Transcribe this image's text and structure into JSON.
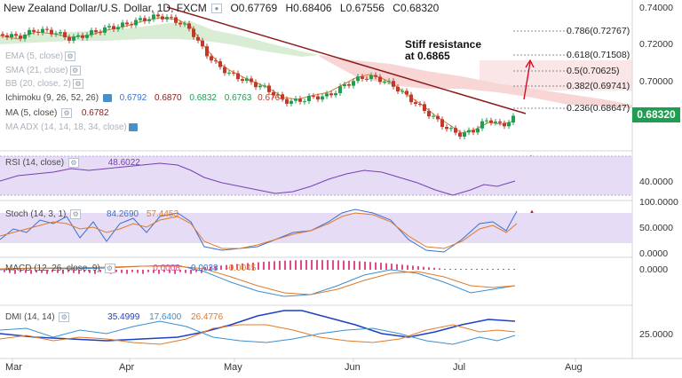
{
  "header": {
    "symbol": "New Zealand Dollar/U.S. Dollar, 1D, FXCM",
    "open": "O0.67769",
    "high": "H0.68406",
    "low": "L0.67556",
    "close": "C0.68320"
  },
  "indicators": {
    "ema1": "EMA (5, close)",
    "sma": "SMA (21, close)",
    "bb": "BB (20, close, 2)",
    "ichimoku": {
      "label": "Ichimoku (9, 26, 52, 26)",
      "v1": "0.6792",
      "v2": "0.6870",
      "v3": "0.6832",
      "v4": "0.6763",
      "v5": "0.6764"
    },
    "ma": {
      "label": "MA (5, close)",
      "v1": "0.6782"
    },
    "maadx": "MA ADX (14, 14, 18, 34, close)",
    "rsi": {
      "label": "RSI (14, close)",
      "v1": "48.6022"
    },
    "stoch": {
      "label": "Stoch (14, 3, 1)",
      "v1": "84.2690",
      "v2": "57.4453"
    },
    "macd": {
      "label": "MACD (12, 26, close, 9)",
      "v1": "0.0008",
      "v2": "-0.0038",
      "v3": "-0.0045"
    },
    "dmi": {
      "label": "DMI (14, 14)",
      "v1": "35.4999",
      "v2": "17.6400",
      "v3": "26.4776"
    }
  },
  "annotation": {
    "line1": "Stiff resistance",
    "line2": "at 0.6865"
  },
  "fib_levels": {
    "l786": "0.786(0.72767)",
    "l618": "0.618(0.71508)",
    "l5": "0.5(0.70625)",
    "l382": "0.382(0.69741)",
    "l236": "0.236(0.68647)"
  },
  "price_axis": [
    "0.74000",
    "0.72000",
    "0.70000"
  ],
  "current_price": "0.68320",
  "rsi_axis": "40.0000",
  "stoch_axis": [
    "100.0000",
    "50.0000",
    "0.0000"
  ],
  "macd_axis": "0.0000",
  "dmi_axis": "25.0000",
  "time_axis": [
    "Mar",
    "Apr",
    "May",
    "Jun",
    "Jul",
    "Aug"
  ],
  "colors": {
    "up": "#1f9e52",
    "down": "#c0392b",
    "trendline": "#8b1a1a",
    "rsi_band": "#e6dcf5",
    "cloud_red": "#f7cfcf",
    "cloud_green": "#cfe9c9"
  },
  "chart_data": {
    "type": "candlestick",
    "symbol": "NZDUSD",
    "timeframe": "1D",
    "x": [
      "Mar",
      "Apr",
      "May",
      "Jun",
      "Jul",
      "Aug"
    ],
    "ylim": [
      0.67,
      0.745
    ],
    "last_close": 0.6832,
    "trendline_resistance": 0.6865,
    "fibonacci": [
      {
        "level": 0.786,
        "price": 0.72767
      },
      {
        "level": 0.618,
        "price": 0.71508
      },
      {
        "level": 0.5,
        "price": 0.70625
      },
      {
        "level": 0.382,
        "price": 0.69741
      },
      {
        "level": 0.236,
        "price": 0.68647
      }
    ],
    "rsi": 48.6022,
    "stoch": [
      84.269,
      57.4453
    ],
    "macd": [
      0.0008,
      -0.0038,
      -0.0045
    ],
    "dmi": [
      35.4999,
      17.64,
      26.4776
    ]
  }
}
